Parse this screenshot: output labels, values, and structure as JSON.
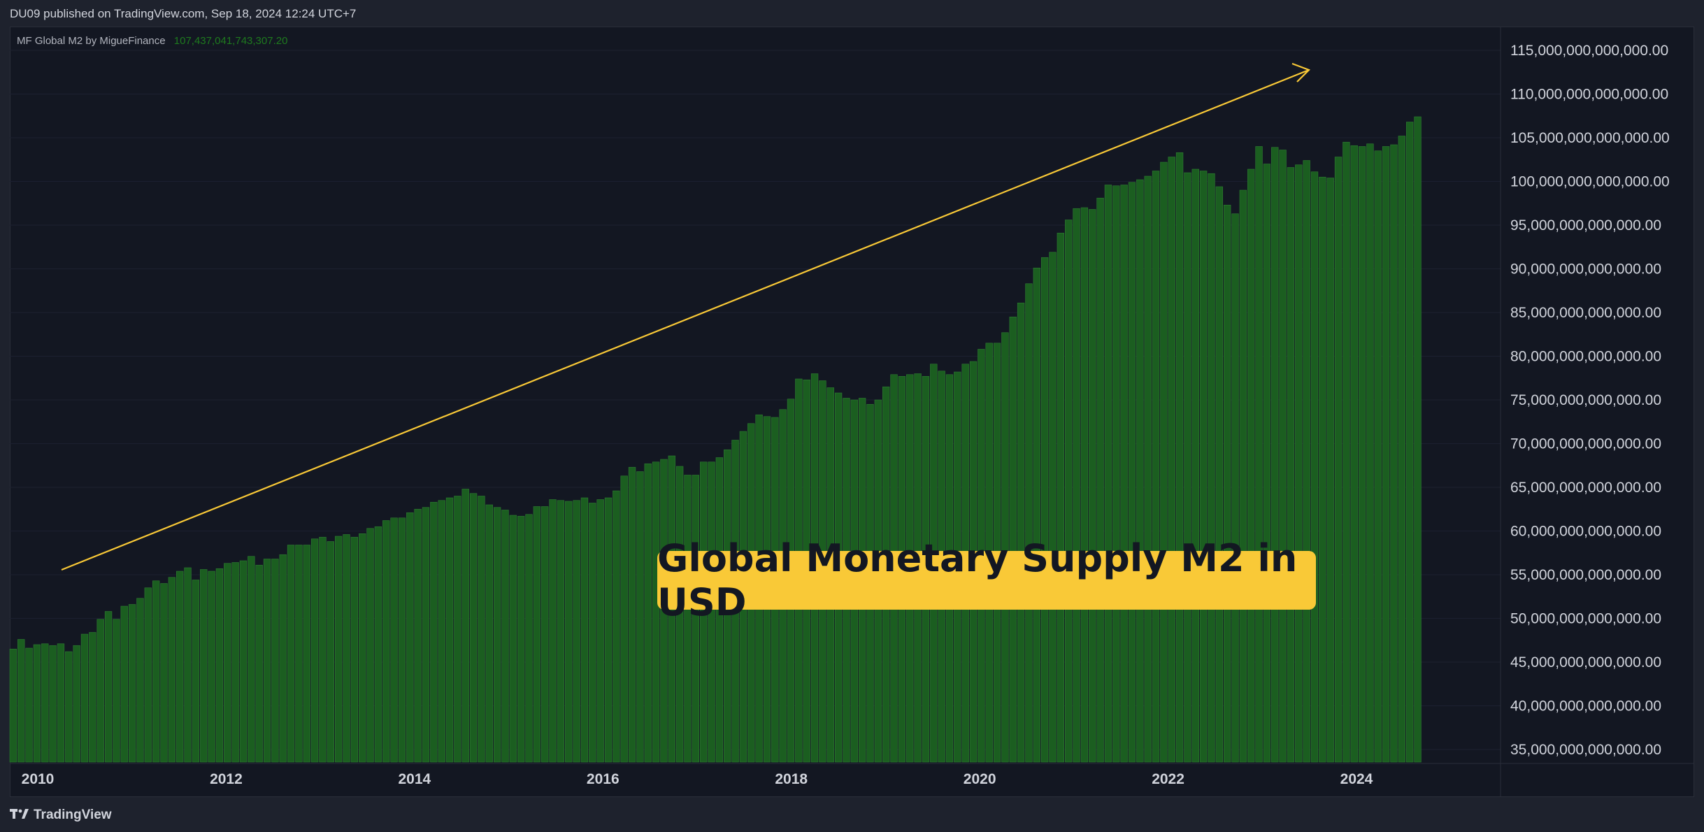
{
  "header": {
    "published": "DU09 published on TradingView.com, Sep 18, 2024 12:24 UTC+7"
  },
  "legend": {
    "indicator": "MF Global M2 by MigueFinance",
    "value": "107,437,041,743,307.20"
  },
  "annotation": {
    "text": "Global Monetary Supply M2 in USD"
  },
  "footer": {
    "brand": "TradingView",
    "brand_icon": "tradingview-logo-icon"
  },
  "colors": {
    "bar": "#1b5e20",
    "bar_edge": "#2e7d32",
    "arrow": "#f9c937",
    "background": "#131722",
    "grid": "#1c2030",
    "text": "#d1d4dc"
  },
  "chart_data": {
    "type": "bar",
    "title": "MF Global M2 by MigueFinance",
    "xlabel": "",
    "ylabel": "",
    "x_start": 2010.0,
    "x_step": 0.0833,
    "ylim": [
      35000000000000,
      116000000000000
    ],
    "x_ticks": [
      "2010",
      "2012",
      "2014",
      "2016",
      "2018",
      "2020",
      "2022",
      "2024"
    ],
    "x_tick_values": [
      2010.17,
      2012.17,
      2014.17,
      2016.17,
      2018.17,
      2020.17,
      2022.17,
      2024.17
    ],
    "y_ticks": [
      "35,000,000,000,000.00",
      "40,000,000,000,000.00",
      "45,000,000,000,000.00",
      "50,000,000,000,000.00",
      "55,000,000,000,000.00",
      "60,000,000,000,000.00",
      "65,000,000,000,000.00",
      "70,000,000,000,000.00",
      "75,000,000,000,000.00",
      "80,000,000,000,000.00",
      "85,000,000,000,000.00",
      "90,000,000,000,000.00",
      "95,000,000,000,000.00",
      "100,000,000,000,000.00",
      "105,000,000,000,000.00",
      "110,000,000,000,000.00",
      "115,000,000,000,000.00"
    ],
    "y_tick_values": [
      35,
      40,
      45,
      50,
      55,
      60,
      65,
      70,
      75,
      80,
      85,
      90,
      95,
      100,
      105,
      110,
      115
    ],
    "values_trillions": [
      46.5,
      47.6,
      46.6,
      47.0,
      47.1,
      46.9,
      47.1,
      46.2,
      46.9,
      48.2,
      48.4,
      49.9,
      50.8,
      49.9,
      51.4,
      51.6,
      52.3,
      53.5,
      54.3,
      54.0,
      54.7,
      55.4,
      55.8,
      54.4,
      55.6,
      55.4,
      55.7,
      56.3,
      56.4,
      56.6,
      57.1,
      56.1,
      56.8,
      56.8,
      57.3,
      58.4,
      58.4,
      58.4,
      59.1,
      59.3,
      58.8,
      59.4,
      59.6,
      59.3,
      59.7,
      60.3,
      60.5,
      61.2,
      61.5,
      61.5,
      62.1,
      62.5,
      62.7,
      63.3,
      63.5,
      63.8,
      64.0,
      64.8,
      64.3,
      64.0,
      63.0,
      62.7,
      62.4,
      61.8,
      61.7,
      61.9,
      62.8,
      62.8,
      63.6,
      63.5,
      63.4,
      63.5,
      63.8,
      63.2,
      63.6,
      63.8,
      64.6,
      66.3,
      67.3,
      66.8,
      67.7,
      67.9,
      68.2,
      68.6,
      67.4,
      66.4,
      66.4,
      67.9,
      67.9,
      68.4,
      69.3,
      70.4,
      71.4,
      72.3,
      73.3,
      73.1,
      73.0,
      73.9,
      75.1,
      77.4,
      77.3,
      78.0,
      77.2,
      76.4,
      75.8,
      75.2,
      75.0,
      75.2,
      74.5,
      75.0,
      76.5,
      77.9,
      77.7,
      77.9,
      78.0,
      77.7,
      79.1,
      78.3,
      77.9,
      78.2,
      79.1,
      79.4,
      80.8,
      81.5,
      81.5,
      82.7,
      84.5,
      86.1,
      88.3,
      90.1,
      91.3,
      91.9,
      94.1,
      95.6,
      96.9,
      97.0,
      96.8,
      98.1,
      99.6,
      99.5,
      99.6,
      99.9,
      100.2,
      100.6,
      101.2,
      102.2,
      102.8,
      103.3,
      101.0,
      101.4,
      101.2,
      100.9,
      99.4,
      97.3,
      96.3,
      99.0,
      101.4,
      104.0,
      102.0,
      103.9,
      103.6,
      101.6,
      101.9,
      102.4,
      101.1,
      100.5,
      100.4,
      102.8,
      104.5,
      104.1,
      104.0,
      104.3,
      103.5,
      104.0,
      104.2,
      105.2,
      106.8,
      107.4
    ]
  }
}
